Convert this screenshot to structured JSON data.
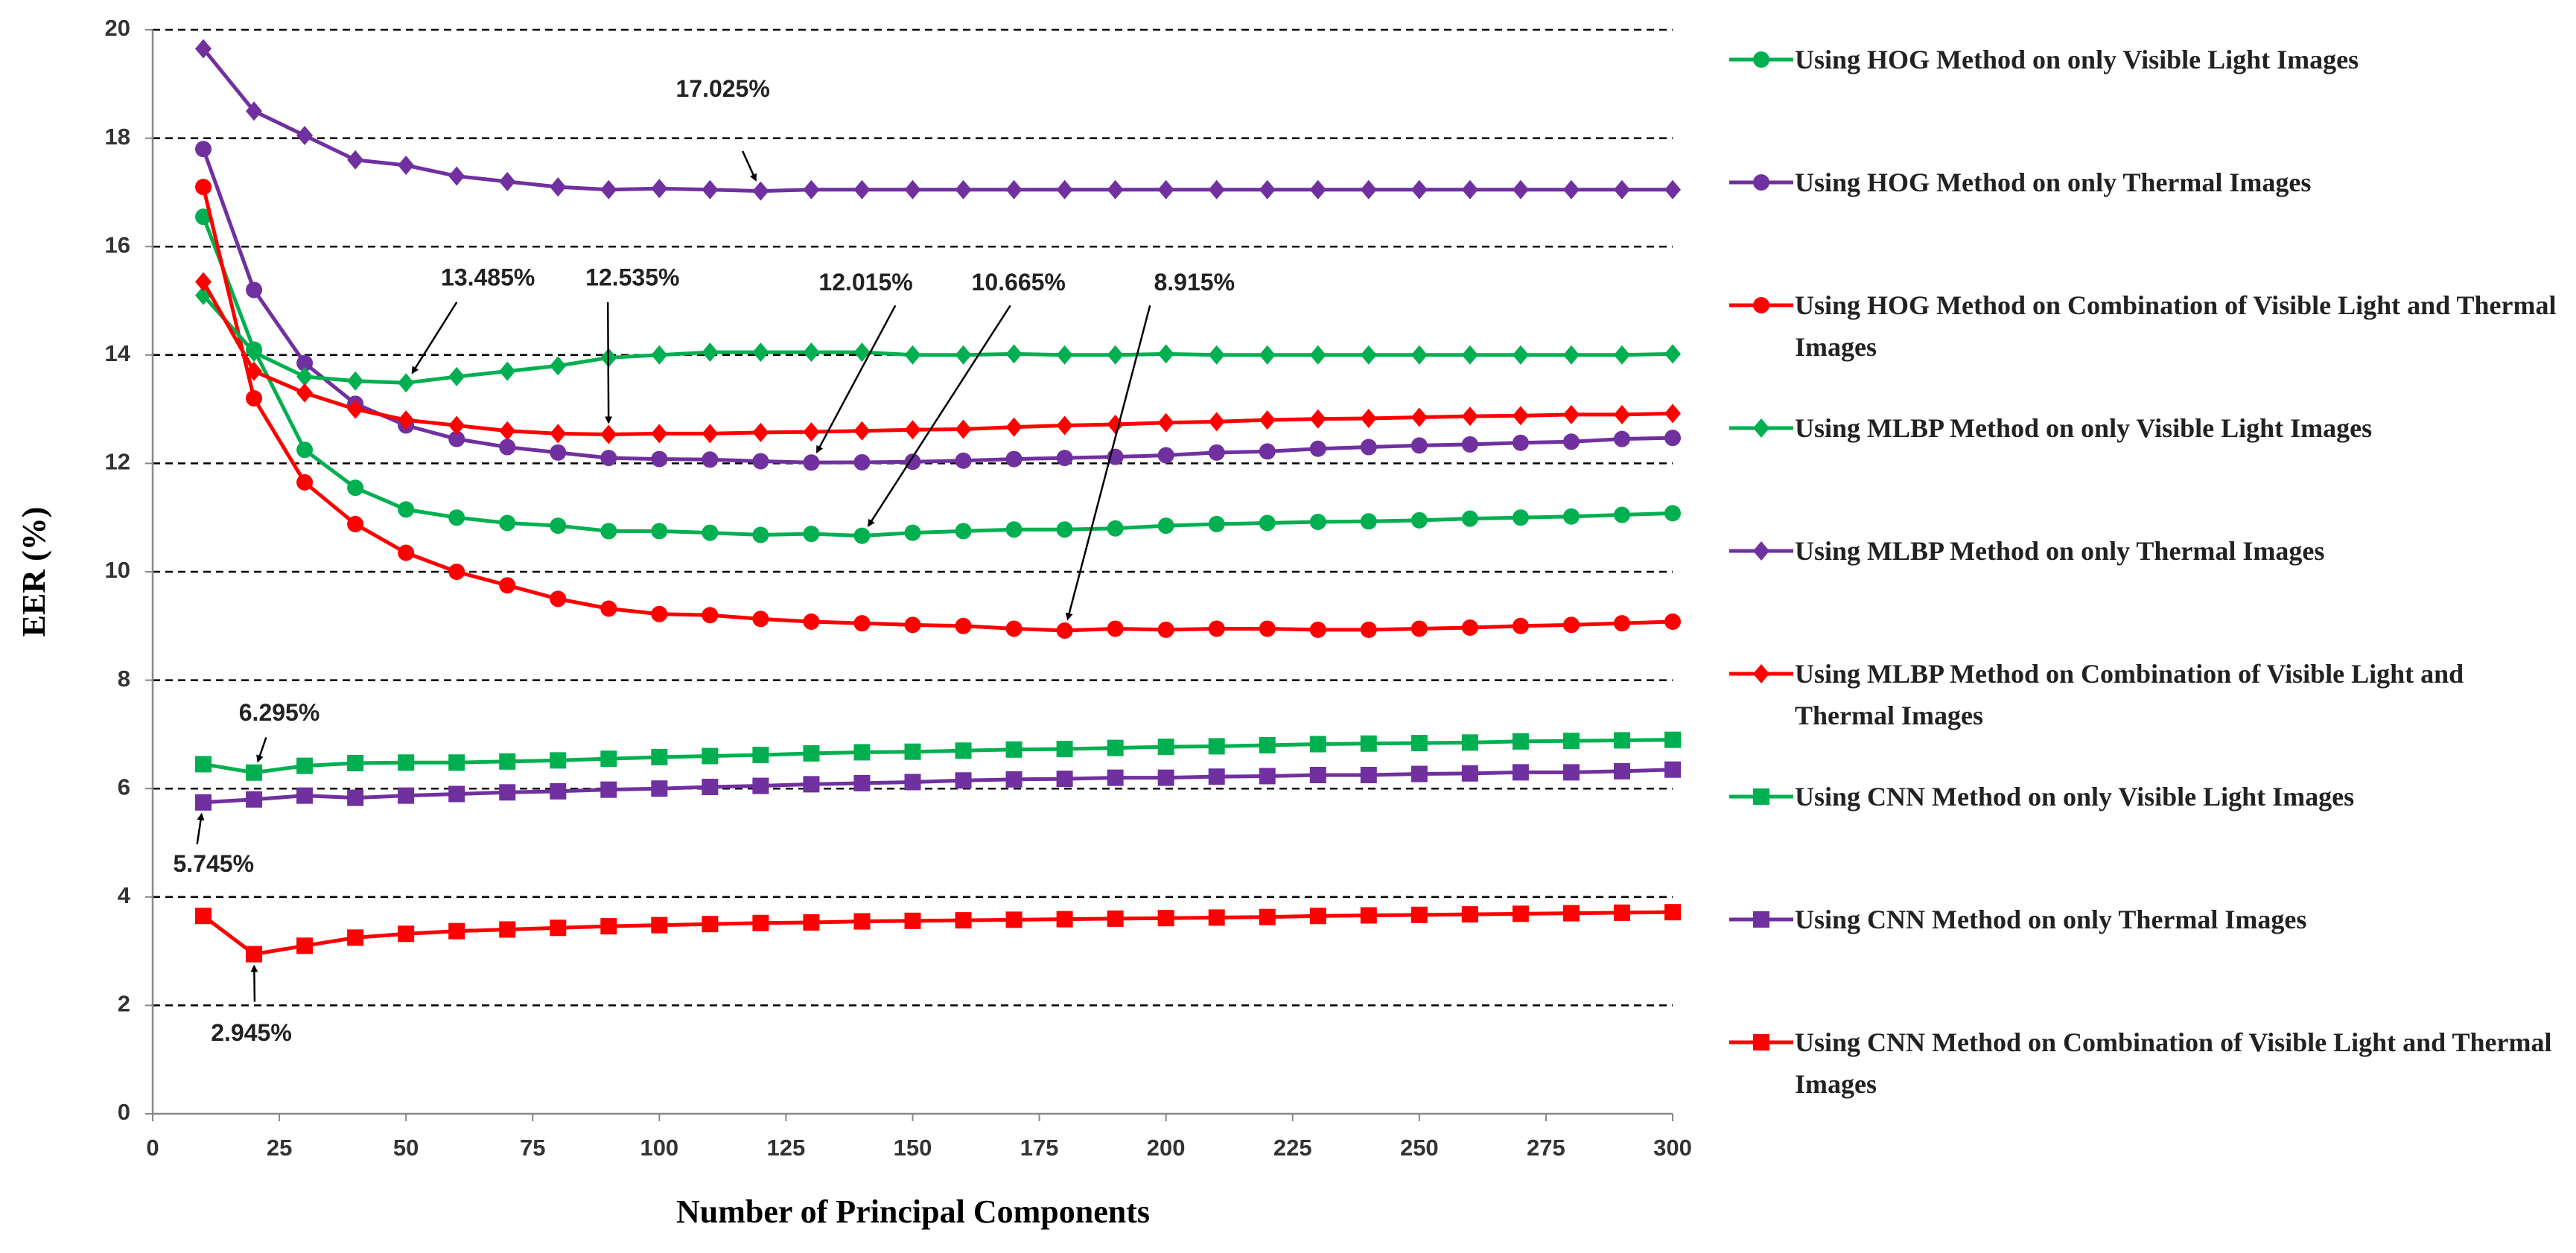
{
  "chart_data": {
    "type": "line",
    "x": [
      10,
      20,
      30,
      40,
      50,
      60,
      70,
      80,
      90,
      100,
      110,
      120,
      130,
      140,
      150,
      160,
      170,
      180,
      190,
      200,
      210,
      220,
      230,
      240,
      250,
      260,
      270,
      280,
      290,
      300
    ],
    "xlabel": "Number of Principal Components",
    "ylabel": "EER (%)",
    "xlim": [
      0,
      300
    ],
    "xticks": [
      0,
      25,
      50,
      75,
      100,
      125,
      150,
      175,
      200,
      225,
      250,
      275,
      300
    ],
    "ylim": [
      0,
      20
    ],
    "yticks": [
      0,
      2,
      4,
      6,
      8,
      10,
      12,
      14,
      16,
      18,
      20
    ],
    "grid": true,
    "legend": "right",
    "series": [
      {
        "name": "Using HOG Method on only Visible Light Images",
        "color": "#00b050",
        "marker": "circle",
        "values": [
          16.55,
          14.1,
          12.25,
          11.55,
          11.15,
          11.0,
          10.9,
          10.85,
          10.75,
          10.75,
          10.72,
          10.68,
          10.7,
          10.665,
          10.72,
          10.75,
          10.78,
          10.78,
          10.8,
          10.85,
          10.88,
          10.9,
          10.92,
          10.93,
          10.95,
          10.98,
          11.0,
          11.02,
          11.05,
          11.08
        ]
      },
      {
        "name": "Using HOG Method on only Thermal Images",
        "color": "#7030a0",
        "marker": "circle",
        "values": [
          17.8,
          15.2,
          13.85,
          13.1,
          12.7,
          12.45,
          12.3,
          12.2,
          12.1,
          12.08,
          12.07,
          12.04,
          12.015,
          12.02,
          12.03,
          12.05,
          12.08,
          12.1,
          12.12,
          12.15,
          12.2,
          12.22,
          12.27,
          12.3,
          12.33,
          12.35,
          12.38,
          12.4,
          12.45,
          12.47
        ]
      },
      {
        "name": "Using HOG Method on Combination of Visible Light and Thermal Images",
        "color": "#ff0000",
        "marker": "circle",
        "values": [
          17.1,
          13.2,
          11.65,
          10.88,
          10.35,
          10.0,
          9.75,
          9.5,
          9.32,
          9.22,
          9.2,
          9.13,
          9.08,
          9.05,
          9.02,
          9.0,
          8.95,
          8.915,
          8.95,
          8.93,
          8.95,
          8.95,
          8.93,
          8.93,
          8.95,
          8.97,
          9.0,
          9.02,
          9.05,
          9.08
        ]
      },
      {
        "name": "Using MLBP Method on only Visible Light Images",
        "color": "#00b050",
        "marker": "diamond",
        "values": [
          15.1,
          14.05,
          13.6,
          13.52,
          13.485,
          13.6,
          13.7,
          13.8,
          13.95,
          14.0,
          14.05,
          14.05,
          14.05,
          14.05,
          14.0,
          14.0,
          14.02,
          14.0,
          14.0,
          14.02,
          14.0,
          14.0,
          14.0,
          14.0,
          14.0,
          14.0,
          14.0,
          14.0,
          14.0,
          14.02
        ]
      },
      {
        "name": "Using MLBP Method on only Thermal Images",
        "color": "#7030a0",
        "marker": "diamond",
        "values": [
          19.65,
          18.5,
          18.05,
          17.6,
          17.5,
          17.3,
          17.2,
          17.1,
          17.05,
          17.07,
          17.05,
          17.025,
          17.05,
          17.05,
          17.05,
          17.05,
          17.05,
          17.05,
          17.05,
          17.05,
          17.05,
          17.05,
          17.05,
          17.05,
          17.05,
          17.05,
          17.05,
          17.05,
          17.05,
          17.05
        ]
      },
      {
        "name": "Using MLBP Method on Combination of Visible Light and Thermal Images",
        "color": "#ff0000",
        "marker": "diamond",
        "values": [
          15.35,
          13.7,
          13.3,
          13.0,
          12.8,
          12.7,
          12.6,
          12.55,
          12.535,
          12.55,
          12.55,
          12.57,
          12.58,
          12.6,
          12.62,
          12.63,
          12.67,
          12.7,
          12.72,
          12.75,
          12.77,
          12.8,
          12.82,
          12.83,
          12.85,
          12.87,
          12.88,
          12.9,
          12.9,
          12.92
        ]
      },
      {
        "name": "Using CNN Method on only Visible Light Images",
        "color": "#00b050",
        "marker": "square",
        "values": [
          6.45,
          6.295,
          6.42,
          6.47,
          6.48,
          6.48,
          6.5,
          6.52,
          6.55,
          6.58,
          6.6,
          6.62,
          6.65,
          6.67,
          6.68,
          6.7,
          6.72,
          6.73,
          6.75,
          6.77,
          6.78,
          6.8,
          6.82,
          6.83,
          6.84,
          6.85,
          6.87,
          6.88,
          6.89,
          6.9
        ]
      },
      {
        "name": "Using CNN Method on only Thermal Images",
        "color": "#7030a0",
        "marker": "square",
        "values": [
          5.745,
          5.8,
          5.87,
          5.83,
          5.87,
          5.9,
          5.93,
          5.95,
          5.98,
          6.0,
          6.03,
          6.05,
          6.08,
          6.1,
          6.12,
          6.15,
          6.17,
          6.18,
          6.2,
          6.2,
          6.22,
          6.23,
          6.25,
          6.25,
          6.27,
          6.28,
          6.3,
          6.3,
          6.32,
          6.35
        ]
      },
      {
        "name": "Using CNN Method on Combination of Visible Light and Thermal Images",
        "color": "#ff0000",
        "marker": "square",
        "values": [
          3.65,
          2.945,
          3.1,
          3.25,
          3.32,
          3.37,
          3.4,
          3.43,
          3.46,
          3.48,
          3.5,
          3.52,
          3.53,
          3.55,
          3.56,
          3.57,
          3.58,
          3.59,
          3.6,
          3.61,
          3.62,
          3.63,
          3.65,
          3.66,
          3.67,
          3.68,
          3.69,
          3.7,
          3.71,
          3.72
        ]
      }
    ],
    "annotations": [
      {
        "text": "17.025%",
        "x": 120,
        "y": 17.025
      },
      {
        "text": "13.485%",
        "x": 50,
        "y": 13.485
      },
      {
        "text": "12.535%",
        "x": 90,
        "y": 12.535
      },
      {
        "text": "12.015%",
        "x": 130,
        "y": 12.015
      },
      {
        "text": "10.665%",
        "x": 140,
        "y": 10.665
      },
      {
        "text": "8.915%",
        "x": 180,
        "y": 8.915
      },
      {
        "text": "6.295%",
        "x": 20,
        "y": 6.295
      },
      {
        "text": "5.745%",
        "x": 10,
        "y": 5.745
      },
      {
        "text": "2.945%",
        "x": 20,
        "y": 2.945
      }
    ]
  }
}
